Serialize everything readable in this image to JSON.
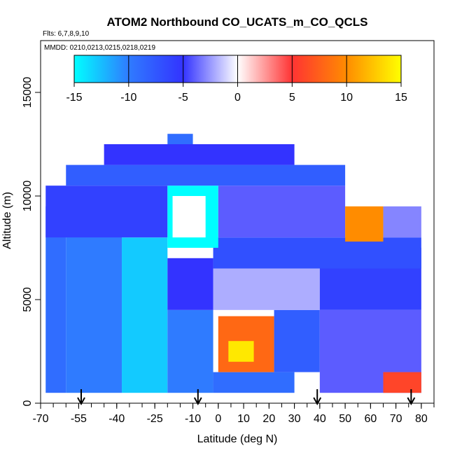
{
  "chart_data": {
    "type": "heatmap",
    "title": "ATOM2 Northbound CO_UCATS_m_CO_QCLS",
    "subtitle_flights": "Flts: 6,7,8,9,10",
    "subtitle_dates": "MMDD: 0210,0213,0215,0218,0219",
    "xlabel": "Latitude (deg N)",
    "ylabel": "Altitude (m)",
    "xlim": [
      -70,
      85
    ],
    "ylim": [
      0,
      17500
    ],
    "x_ticks": [
      -70,
      -55,
      -40,
      -25,
      -10,
      0,
      10,
      20,
      30,
      40,
      50,
      60,
      70,
      80
    ],
    "x_tick_labels": [
      "-70",
      "-55",
      "-40",
      "-25",
      "-10",
      "0",
      "10",
      "20",
      "30",
      "40",
      "50",
      "60",
      "70",
      "80"
    ],
    "y_ticks": [
      0,
      5000,
      10000,
      15000
    ],
    "y_tick_labels": [
      "0",
      "5000",
      "10000",
      "15000"
    ],
    "colorbar": {
      "range": [
        -15,
        15
      ],
      "ticks": [
        -15,
        -10,
        -5,
        0,
        5,
        10,
        15
      ],
      "tick_labels": [
        "-15",
        "-10",
        "-5",
        "0",
        "5",
        "10",
        "15"
      ],
      "colors": [
        "#00ffff",
        "#2f7bff",
        "#3333ff",
        "#ffffff",
        "#ff3333",
        "#ff8c00",
        "#ffff00"
      ]
    },
    "profile_markers_lat": [
      -54,
      -8,
      39,
      76
    ],
    "grid": false,
    "cells": [
      {
        "lat0": -68,
        "lat1": -60,
        "alt0": 500,
        "alt1": 9500,
        "value": -9
      },
      {
        "lat0": -60,
        "lat1": -38,
        "alt0": 500,
        "alt1": 9500,
        "value": -10
      },
      {
        "lat0": -38,
        "lat1": -20,
        "alt0": 500,
        "alt1": 8000,
        "value": -13
      },
      {
        "lat0": -20,
        "lat1": -2,
        "alt0": 500,
        "alt1": 4500,
        "value": -10
      },
      {
        "lat0": -20,
        "lat1": -2,
        "alt0": 4500,
        "alt1": 7000,
        "value": -5
      },
      {
        "lat0": -2,
        "lat1": 30,
        "alt0": 500,
        "alt1": 1500,
        "value": -9
      },
      {
        "lat0": 0,
        "lat1": 22,
        "alt0": 1500,
        "alt1": 4200,
        "value": 8
      },
      {
        "lat0": 4,
        "lat1": 14,
        "alt0": 2000,
        "alt1": 3000,
        "value": 14
      },
      {
        "lat0": 22,
        "lat1": 40,
        "alt0": 1500,
        "alt1": 4500,
        "value": -8
      },
      {
        "lat0": 40,
        "lat1": 80,
        "alt0": 500,
        "alt1": 4500,
        "value": -4
      },
      {
        "lat0": 65,
        "lat1": 80,
        "alt0": 500,
        "alt1": 1500,
        "value": 6
      },
      {
        "lat0": -2,
        "lat1": 40,
        "alt0": 4500,
        "alt1": 6500,
        "value": -2
      },
      {
        "lat0": 40,
        "lat1": 80,
        "alt0": 4500,
        "alt1": 7500,
        "value": -6
      },
      {
        "lat0": -2,
        "lat1": 80,
        "alt0": 6500,
        "alt1": 8000,
        "value": -7
      },
      {
        "lat0": -68,
        "lat1": -20,
        "alt0": 8000,
        "alt1": 10500,
        "value": -6
      },
      {
        "lat0": -20,
        "lat1": 0,
        "alt0": 7500,
        "alt1": 10500,
        "value": -15
      },
      {
        "lat0": -18,
        "lat1": -5,
        "alt0": 8000,
        "alt1": 10000,
        "value": 0
      },
      {
        "lat0": 0,
        "lat1": 50,
        "alt0": 8000,
        "alt1": 10500,
        "value": -4
      },
      {
        "lat0": 50,
        "lat1": 65,
        "alt0": 7800,
        "alt1": 9500,
        "value": 10
      },
      {
        "lat0": 65,
        "lat1": 80,
        "alt0": 8000,
        "alt1": 9500,
        "value": -3
      },
      {
        "lat0": -60,
        "lat1": 50,
        "alt0": 10500,
        "alt1": 11500,
        "value": -8
      },
      {
        "lat0": -45,
        "lat1": 30,
        "alt0": 11500,
        "alt1": 12500,
        "value": -5
      },
      {
        "lat0": -20,
        "lat1": -10,
        "alt0": 12500,
        "alt1": 13000,
        "value": -9
      }
    ]
  }
}
